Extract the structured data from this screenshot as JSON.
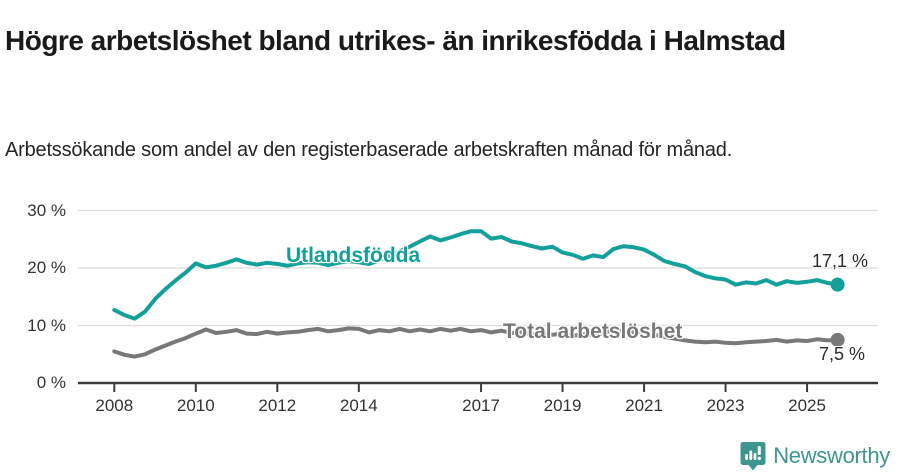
{
  "header": {
    "title": "Högre arbetslöshet bland utrikes- än inrikesfödda i Halmstad",
    "subtitle": "Arbetssökande som andel av den registerbaserade arbetskraften månad för månad."
  },
  "footer": {
    "brand": "Newsworthy",
    "brand_color": "#3f968f",
    "logo_icon": "bar-chart-speech-pin-icon"
  },
  "colors": {
    "series_foreign_born": "#14a09a",
    "series_total": "#787878",
    "gridline": "#dcdcdc",
    "axis": "#3c3c3c",
    "text_dark": "#1a1a1a"
  },
  "chart_data": {
    "type": "line",
    "title": "Högre arbetslöshet bland utrikes- än inrikesfödda i Halmstad",
    "subtitle": "Arbetssökande som andel av den registerbaserade arbetskraften månad för månad.",
    "x_unit": "year (decimal, quarterly samples of monthly series)",
    "xlim": [
      2008,
      2026
    ],
    "ylim": [
      0,
      32
    ],
    "grid": "horizontal",
    "legend_position": "inline-labels-on-lines",
    "x_ticks": [
      2008,
      2010,
      2012,
      2014,
      2017,
      2019,
      2021,
      2023,
      2025
    ],
    "x_tick_labels": [
      "2008",
      "2010",
      "2012",
      "2014",
      "2017",
      "2019",
      "2021",
      "2023",
      "2025"
    ],
    "y_ticks": [
      0,
      10,
      20,
      30
    ],
    "y_tick_labels": [
      "0 %",
      "10 %",
      "20 %",
      "30 %"
    ],
    "x": [
      2008,
      2008.25,
      2008.5,
      2008.75,
      2009,
      2009.25,
      2009.5,
      2009.75,
      2010,
      2010.25,
      2010.5,
      2010.75,
      2011,
      2011.25,
      2011.5,
      2011.75,
      2012,
      2012.25,
      2012.5,
      2012.75,
      2013,
      2013.25,
      2013.5,
      2013.75,
      2014,
      2014.25,
      2014.5,
      2014.75,
      2015,
      2015.25,
      2015.5,
      2015.75,
      2016,
      2016.25,
      2016.5,
      2016.75,
      2017,
      2017.25,
      2017.5,
      2017.75,
      2018,
      2018.25,
      2018.5,
      2018.75,
      2019,
      2019.25,
      2019.5,
      2019.75,
      2020,
      2020.25,
      2020.5,
      2020.75,
      2021,
      2021.25,
      2021.5,
      2021.75,
      2022,
      2022.25,
      2022.5,
      2022.75,
      2023,
      2023.25,
      2023.5,
      2023.75,
      2024,
      2024.25,
      2024.5,
      2024.75,
      2025,
      2025.25,
      2025.5,
      2025.75
    ],
    "series": [
      {
        "name": "Utlandsfödda",
        "color": "#14a09a",
        "end_label": "17,1 %",
        "end_value": 17.1,
        "values": [
          12.7,
          11.8,
          11.2,
          12.4,
          14.6,
          16.3,
          17.8,
          19.2,
          20.8,
          20.1,
          20.4,
          20.9,
          21.5,
          20.9,
          20.6,
          20.9,
          20.7,
          20.4,
          20.8,
          21.0,
          20.9,
          20.5,
          20.9,
          21.2,
          21.0,
          20.7,
          21.3,
          22.1,
          22.9,
          23.7,
          24.6,
          25.5,
          24.8,
          25.3,
          25.9,
          26.4,
          26.4,
          25.1,
          25.4,
          24.6,
          24.3,
          23.8,
          23.4,
          23.7,
          22.7,
          22.3,
          21.6,
          22.2,
          21.9,
          23.3,
          23.8,
          23.6,
          23.2,
          22.3,
          21.2,
          20.7,
          20.3,
          19.3,
          18.6,
          18.2,
          18.0,
          17.1,
          17.5,
          17.3,
          17.9,
          17.1,
          17.7,
          17.4,
          17.6,
          17.9,
          17.4,
          17.1
        ]
      },
      {
        "name": "Total arbetslöshet",
        "color": "#787878",
        "end_label": "7,5 %",
        "end_value": 7.5,
        "values": [
          5.5,
          4.9,
          4.6,
          5.0,
          5.8,
          6.5,
          7.2,
          7.8,
          8.6,
          9.3,
          8.7,
          8.9,
          9.2,
          8.6,
          8.5,
          8.9,
          8.6,
          8.8,
          8.9,
          9.2,
          9.4,
          9.0,
          9.2,
          9.5,
          9.4,
          8.8,
          9.2,
          9.0,
          9.4,
          9.0,
          9.3,
          9.0,
          9.4,
          9.1,
          9.4,
          9.0,
          9.2,
          8.8,
          9.1,
          8.7,
          8.8,
          8.4,
          8.7,
          8.4,
          8.6,
          8.2,
          8.5,
          8.3,
          8.7,
          9.2,
          9.0,
          8.8,
          8.8,
          8.4,
          8.0,
          7.7,
          7.4,
          7.2,
          7.1,
          7.2,
          7.0,
          6.9,
          7.1,
          7.2,
          7.3,
          7.5,
          7.2,
          7.4,
          7.3,
          7.6,
          7.4,
          7.5
        ]
      }
    ]
  }
}
